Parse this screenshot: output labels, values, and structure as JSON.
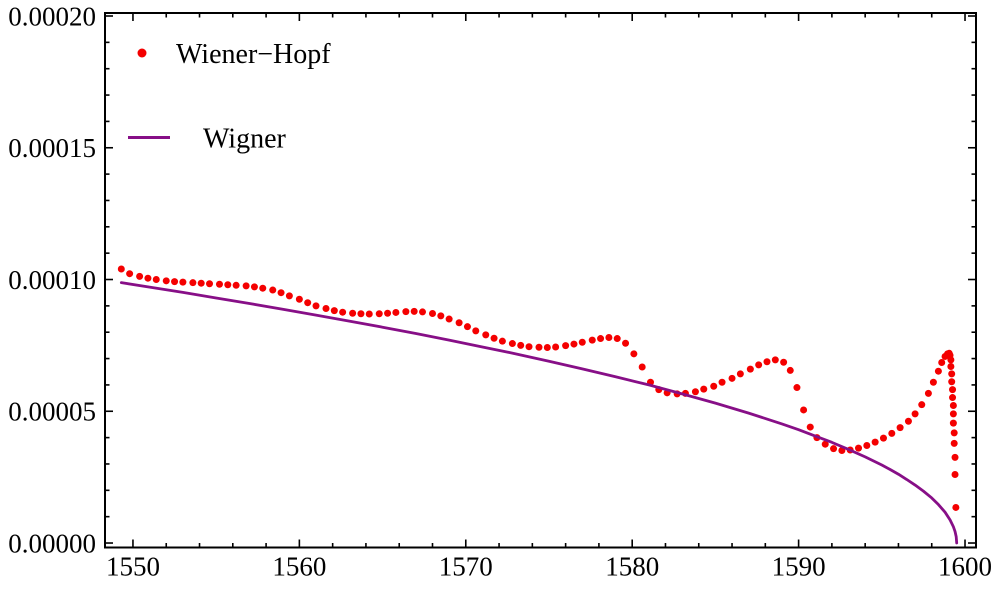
{
  "figure": {
    "background": "#ffffff",
    "frame_color": "#000000",
    "text_color": "#000000",
    "tick_label_font_size": 27,
    "legend_font_size": 28
  },
  "legend": {
    "items": [
      {
        "label": "Wiener−Hopf",
        "marker": "dot",
        "color": "#f40000"
      },
      {
        "label": "Wigner",
        "marker": "line",
        "color": "#870f87"
      }
    ]
  },
  "chart_data": {
    "type": "scatter",
    "title": "",
    "xlabel": "",
    "ylabel": "",
    "grid": false,
    "legend_position": "top-left-inside",
    "xlim": [
      1548.32,
      1600.66
    ],
    "ylim_scaled": [
      -0.17,
      20.114
    ],
    "y_scale": 1e-05,
    "x_major_ticks": [
      {
        "value": 1550,
        "label": "1550"
      },
      {
        "value": 1560,
        "label": "1560"
      },
      {
        "value": 1570,
        "label": "1570"
      },
      {
        "value": 1580,
        "label": "1580"
      },
      {
        "value": 1590,
        "label": "1590"
      },
      {
        "value": 1600,
        "label": "1600"
      }
    ],
    "x_minor_step": 2,
    "x_major_step": 10,
    "y_major_ticks_scaled": [
      {
        "value": 0,
        "label": "0.00000"
      },
      {
        "value": 5,
        "label": "0.00005"
      },
      {
        "value": 10,
        "label": "0.00010"
      },
      {
        "value": 15,
        "label": "0.00015"
      },
      {
        "value": 20,
        "label": "0.00020"
      }
    ],
    "y_minor_step_scaled": 1,
    "y_major_step_scaled": 5,
    "series": [
      {
        "name": "Wiener-Hopf",
        "type": "scatter",
        "color": "#f40000",
        "marker_radius": 3.5,
        "points": [
          [
            1549.3,
            10.4
          ],
          [
            1549.8,
            10.22
          ],
          [
            1550.4,
            10.12
          ],
          [
            1550.9,
            10.05
          ],
          [
            1551.4,
            10.0
          ],
          [
            1552.0,
            9.95
          ],
          [
            1552.5,
            9.92
          ],
          [
            1553.0,
            9.9
          ],
          [
            1553.6,
            9.88
          ],
          [
            1554.1,
            9.86
          ],
          [
            1554.6,
            9.84
          ],
          [
            1555.2,
            9.82
          ],
          [
            1555.7,
            9.8
          ],
          [
            1556.2,
            9.78
          ],
          [
            1556.8,
            9.76
          ],
          [
            1557.3,
            9.72
          ],
          [
            1557.8,
            9.67
          ],
          [
            1558.4,
            9.6
          ],
          [
            1558.9,
            9.5
          ],
          [
            1559.4,
            9.38
          ],
          [
            1560.0,
            9.25
          ],
          [
            1560.5,
            9.12
          ],
          [
            1561.0,
            9.0
          ],
          [
            1561.6,
            8.9
          ],
          [
            1562.1,
            8.82
          ],
          [
            1562.6,
            8.76
          ],
          [
            1563.2,
            8.72
          ],
          [
            1563.7,
            8.7
          ],
          [
            1564.2,
            8.69
          ],
          [
            1564.8,
            8.7
          ],
          [
            1565.3,
            8.72
          ],
          [
            1565.8,
            8.75
          ],
          [
            1566.4,
            8.78
          ],
          [
            1566.9,
            8.79
          ],
          [
            1567.4,
            8.77
          ],
          [
            1568.0,
            8.71
          ],
          [
            1568.5,
            8.62
          ],
          [
            1569.0,
            8.5
          ],
          [
            1569.6,
            8.36
          ],
          [
            1570.1,
            8.21
          ],
          [
            1570.6,
            8.05
          ],
          [
            1571.2,
            7.9
          ],
          [
            1571.7,
            7.77
          ],
          [
            1572.2,
            7.66
          ],
          [
            1572.8,
            7.57
          ],
          [
            1573.3,
            7.5
          ],
          [
            1573.8,
            7.45
          ],
          [
            1574.4,
            7.43
          ],
          [
            1574.9,
            7.42
          ],
          [
            1575.4,
            7.44
          ],
          [
            1576.0,
            7.49
          ],
          [
            1576.5,
            7.55
          ],
          [
            1577.0,
            7.62
          ],
          [
            1577.6,
            7.7
          ],
          [
            1578.1,
            7.76
          ],
          [
            1578.6,
            7.8
          ],
          [
            1579.1,
            7.76
          ],
          [
            1579.6,
            7.58
          ],
          [
            1580.1,
            7.18
          ],
          [
            1580.6,
            6.68
          ],
          [
            1581.1,
            6.1
          ],
          [
            1581.6,
            5.82
          ],
          [
            1582.1,
            5.7
          ],
          [
            1582.7,
            5.66
          ],
          [
            1583.2,
            5.68
          ],
          [
            1583.8,
            5.74
          ],
          [
            1584.3,
            5.84
          ],
          [
            1584.9,
            5.95
          ],
          [
            1585.4,
            6.1
          ],
          [
            1586.0,
            6.25
          ],
          [
            1586.5,
            6.42
          ],
          [
            1587.1,
            6.6
          ],
          [
            1587.6,
            6.76
          ],
          [
            1588.1,
            6.88
          ],
          [
            1588.6,
            6.95
          ],
          [
            1589.1,
            6.86
          ],
          [
            1589.5,
            6.55
          ],
          [
            1589.9,
            5.9
          ],
          [
            1590.3,
            5.05
          ],
          [
            1590.7,
            4.4
          ],
          [
            1591.1,
            4.0
          ],
          [
            1591.6,
            3.75
          ],
          [
            1592.1,
            3.58
          ],
          [
            1592.6,
            3.51
          ],
          [
            1593.1,
            3.53
          ],
          [
            1593.6,
            3.6
          ],
          [
            1594.1,
            3.7
          ],
          [
            1594.6,
            3.83
          ],
          [
            1595.1,
            3.98
          ],
          [
            1595.6,
            4.16
          ],
          [
            1596.1,
            4.38
          ],
          [
            1596.6,
            4.62
          ],
          [
            1597.0,
            4.9
          ],
          [
            1597.4,
            5.25
          ],
          [
            1597.8,
            5.68
          ],
          [
            1598.1,
            6.1
          ],
          [
            1598.4,
            6.52
          ],
          [
            1598.6,
            6.85
          ],
          [
            1598.8,
            7.08
          ],
          [
            1598.95,
            7.18
          ],
          [
            1599.05,
            7.2
          ],
          [
            1599.1,
            7.12
          ],
          [
            1599.15,
            6.95
          ],
          [
            1599.15,
            6.7
          ],
          [
            1599.2,
            6.42
          ],
          [
            1599.2,
            6.12
          ],
          [
            1599.25,
            5.82
          ],
          [
            1599.25,
            5.52
          ],
          [
            1599.3,
            5.22
          ],
          [
            1599.3,
            4.9
          ],
          [
            1599.3,
            4.55
          ],
          [
            1599.35,
            4.18
          ],
          [
            1599.35,
            3.78
          ],
          [
            1599.4,
            3.25
          ],
          [
            1599.4,
            2.6
          ],
          [
            1599.45,
            1.35
          ]
        ]
      },
      {
        "name": "Wigner",
        "type": "line",
        "color": "#870f87",
        "line_width": 2.8,
        "points": [
          [
            1549.3,
            9.88
          ],
          [
            1551,
            9.71
          ],
          [
            1553,
            9.51
          ],
          [
            1555,
            9.3
          ],
          [
            1557,
            9.09
          ],
          [
            1559,
            8.87
          ],
          [
            1561,
            8.65
          ],
          [
            1563,
            8.42
          ],
          [
            1565,
            8.19
          ],
          [
            1567,
            7.95
          ],
          [
            1569,
            7.7
          ],
          [
            1571,
            7.44
          ],
          [
            1573,
            7.18
          ],
          [
            1575,
            6.9
          ],
          [
            1577,
            6.61
          ],
          [
            1579,
            6.31
          ],
          [
            1581,
            6.0
          ],
          [
            1583,
            5.66
          ],
          [
            1585,
            5.31
          ],
          [
            1587,
            4.93
          ],
          [
            1589,
            4.52
          ],
          [
            1590,
            4.3
          ],
          [
            1591,
            4.06
          ],
          [
            1592,
            3.82
          ],
          [
            1593,
            3.55
          ],
          [
            1594,
            3.27
          ],
          [
            1595,
            2.96
          ],
          [
            1595.5,
            2.79
          ],
          [
            1596,
            2.61
          ],
          [
            1596.5,
            2.41
          ],
          [
            1597,
            2.2
          ],
          [
            1597.5,
            1.97
          ],
          [
            1598,
            1.71
          ],
          [
            1598.4,
            1.46
          ],
          [
            1598.8,
            1.17
          ],
          [
            1599.1,
            0.88
          ],
          [
            1599.3,
            0.62
          ],
          [
            1599.4,
            0.44
          ],
          [
            1599.47,
            0.24
          ],
          [
            1599.5,
            0.0
          ]
        ]
      }
    ]
  }
}
